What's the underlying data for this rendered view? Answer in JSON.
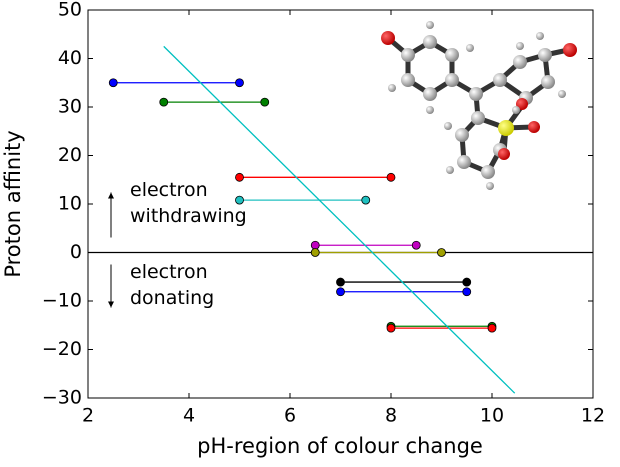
{
  "chart_data": {
    "type": "dumbbell",
    "xlabel": "pH-region of colour change",
    "ylabel": "Proton affinity",
    "xlim": [
      2,
      12
    ],
    "ylim": [
      -30,
      50
    ],
    "xticks": [
      2,
      4,
      6,
      8,
      10,
      12
    ],
    "yticks": [
      {
        "value": -30,
        "label": "−30"
      },
      {
        "value": -20,
        "label": "−20"
      },
      {
        "value": -10,
        "label": "−10"
      },
      0,
      10,
      20,
      30,
      40,
      50
    ],
    "reference_line": 0,
    "segments": [
      {
        "x": [
          2.5,
          5
        ],
        "y": 35,
        "color": "#0000ff"
      },
      {
        "x": [
          3.5,
          5.5
        ],
        "y": 31,
        "color": "#008000"
      },
      {
        "x": [
          5,
          8
        ],
        "y": 15.5,
        "color": "#ff0000"
      },
      {
        "x": [
          5,
          7.5
        ],
        "y": 10.8,
        "color": "#20c0c0"
      },
      {
        "x": [
          6.5,
          8.5
        ],
        "y": 1.5,
        "color": "#c000c0"
      },
      {
        "x": [
          6.5,
          9
        ],
        "y": 0,
        "color": "#a0a000"
      },
      {
        "x": [
          7,
          9.5
        ],
        "y": -6.1,
        "color": "#000000"
      },
      {
        "x": [
          7,
          9.5
        ],
        "y": -8.1,
        "color": "#0000ff"
      },
      {
        "x": [
          8,
          10
        ],
        "y": -15.2,
        "color": "#008000"
      },
      {
        "x": [
          8,
          10
        ],
        "y": -15.6,
        "color": "#ff0000"
      }
    ],
    "fit_line": {
      "x": [
        3.5,
        10.45
      ],
      "y": [
        42.5,
        -29
      ],
      "color": "#00c0c0"
    },
    "annotations": [
      {
        "lines": [
          "electron",
          "withdrawing"
        ],
        "arrow": "up"
      },
      {
        "lines": [
          "electron",
          "donating"
        ],
        "arrow": "down"
      }
    ]
  }
}
